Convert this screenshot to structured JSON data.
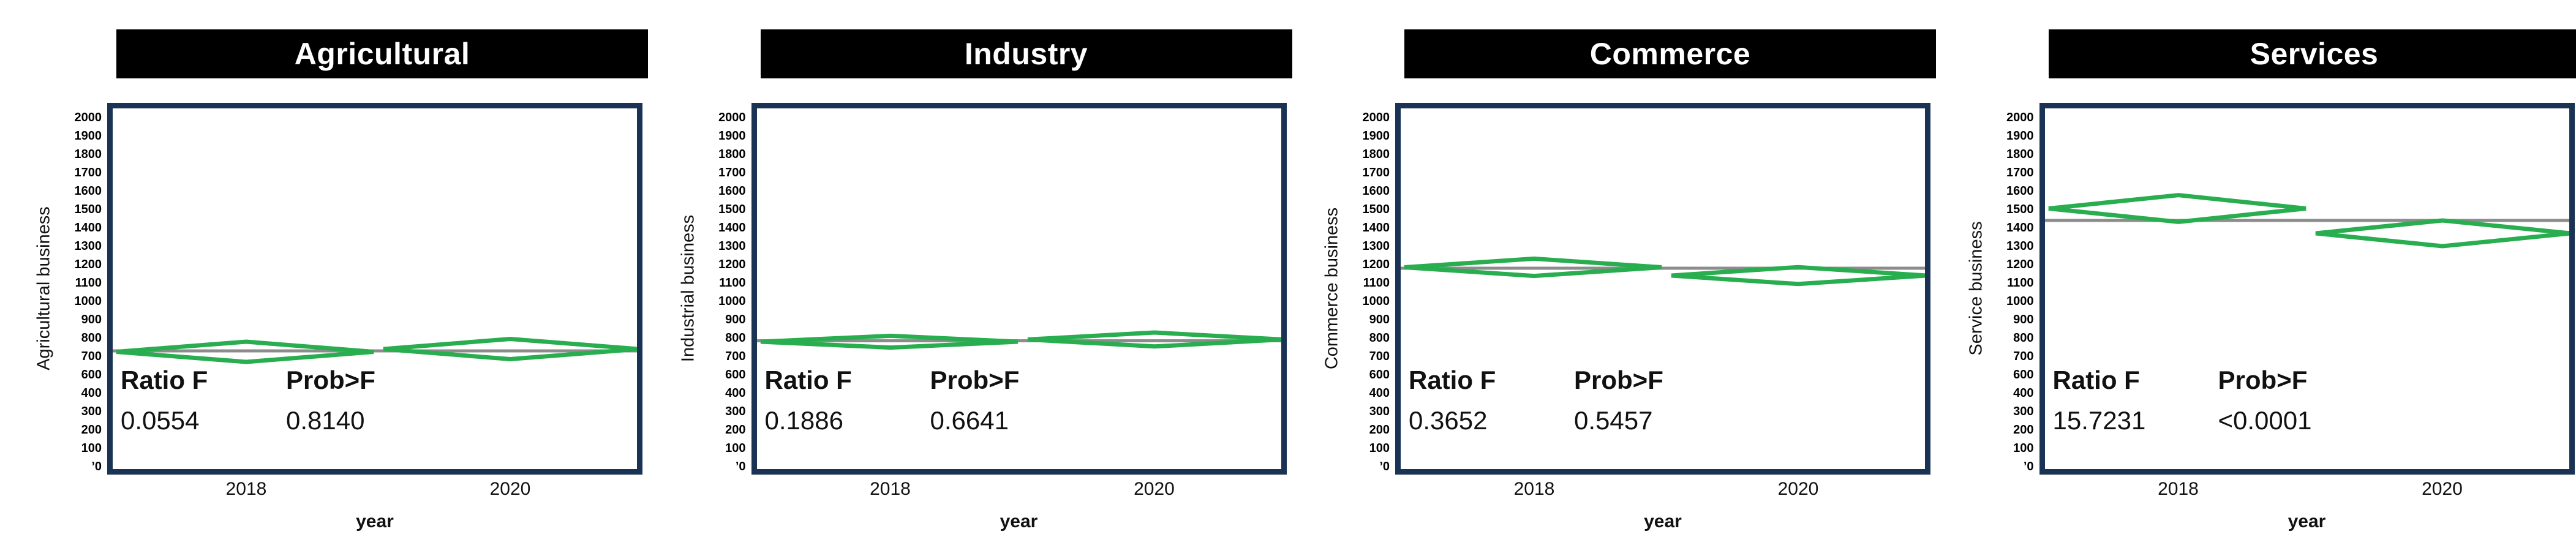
{
  "figure": {
    "background": "#ffffff",
    "x_axis_title": "year",
    "stats_labels": {
      "ratio": "Ratio F",
      "prob": "Prob>F"
    },
    "y_tick_labels": [
      "2000",
      "1900",
      "1800",
      "1700",
      "1600",
      "1500",
      "1400",
      "1300",
      "1200",
      "1100",
      "1000",
      "900",
      "800",
      "700",
      "600",
      "400",
      "300",
      "200",
      "100",
      "’0"
    ],
    "colors": {
      "diamond_green": "#28ad4f",
      "grand_mean_gray": "#8c8c8c",
      "plot_border_navy": "#1a3354",
      "title_bar_bg": "#000000",
      "title_text": "#ffffff",
      "text": "#111111"
    }
  },
  "chart_data": [
    {
      "type": "means-diamond",
      "title": "Agricultural",
      "ylabel": "Agricultural business",
      "xlabel": "year",
      "categories": [
        "2018",
        "2020"
      ],
      "ylim": [
        0,
        2000
      ],
      "y_tick_interval": 100,
      "grand_mean": 730,
      "diamonds": [
        {
          "group": "2018",
          "mean": 725,
          "upper": 780,
          "lower": 670
        },
        {
          "group": "2020",
          "mean": 740,
          "upper": 795,
          "lower": 685
        }
      ],
      "ratio_f": "0.0554",
      "prob_f": "0.8140"
    },
    {
      "type": "means-diamond",
      "title": "Industry",
      "ylabel": "Industrial business",
      "xlabel": "year",
      "categories": [
        "2018",
        "2020"
      ],
      "ylim": [
        0,
        2000
      ],
      "y_tick_interval": 100,
      "grand_mean": 785,
      "diamonds": [
        {
          "group": "2018",
          "mean": 780,
          "upper": 812,
          "lower": 748
        },
        {
          "group": "2020",
          "mean": 792,
          "upper": 830,
          "lower": 754
        }
      ],
      "ratio_f": "0.1886",
      "prob_f": "0.6641"
    },
    {
      "type": "means-diamond",
      "title": "Commerce",
      "ylabel": "Commerce business",
      "xlabel": "year",
      "categories": [
        "2018",
        "2020"
      ],
      "ylim": [
        0,
        2000
      ],
      "y_tick_interval": 100,
      "grand_mean": 1180,
      "diamonds": [
        {
          "group": "2018",
          "mean": 1185,
          "upper": 1232,
          "lower": 1138
        },
        {
          "group": "2020",
          "mean": 1140,
          "upper": 1186,
          "lower": 1094
        }
      ],
      "ratio_f": "0.3652",
      "prob_f": "0.5457"
    },
    {
      "type": "means-diamond",
      "title": "Services",
      "ylabel": "Service business",
      "xlabel": "year",
      "categories": [
        "2018",
        "2020"
      ],
      "ylim": [
        0,
        2000
      ],
      "y_tick_interval": 100,
      "grand_mean": 1440,
      "diamonds": [
        {
          "group": "2018",
          "mean": 1505,
          "upper": 1578,
          "lower": 1432
        },
        {
          "group": "2020",
          "mean": 1370,
          "upper": 1440,
          "lower": 1300
        }
      ],
      "ratio_f": "15.7231",
      "prob_f": "<0.0001"
    }
  ]
}
